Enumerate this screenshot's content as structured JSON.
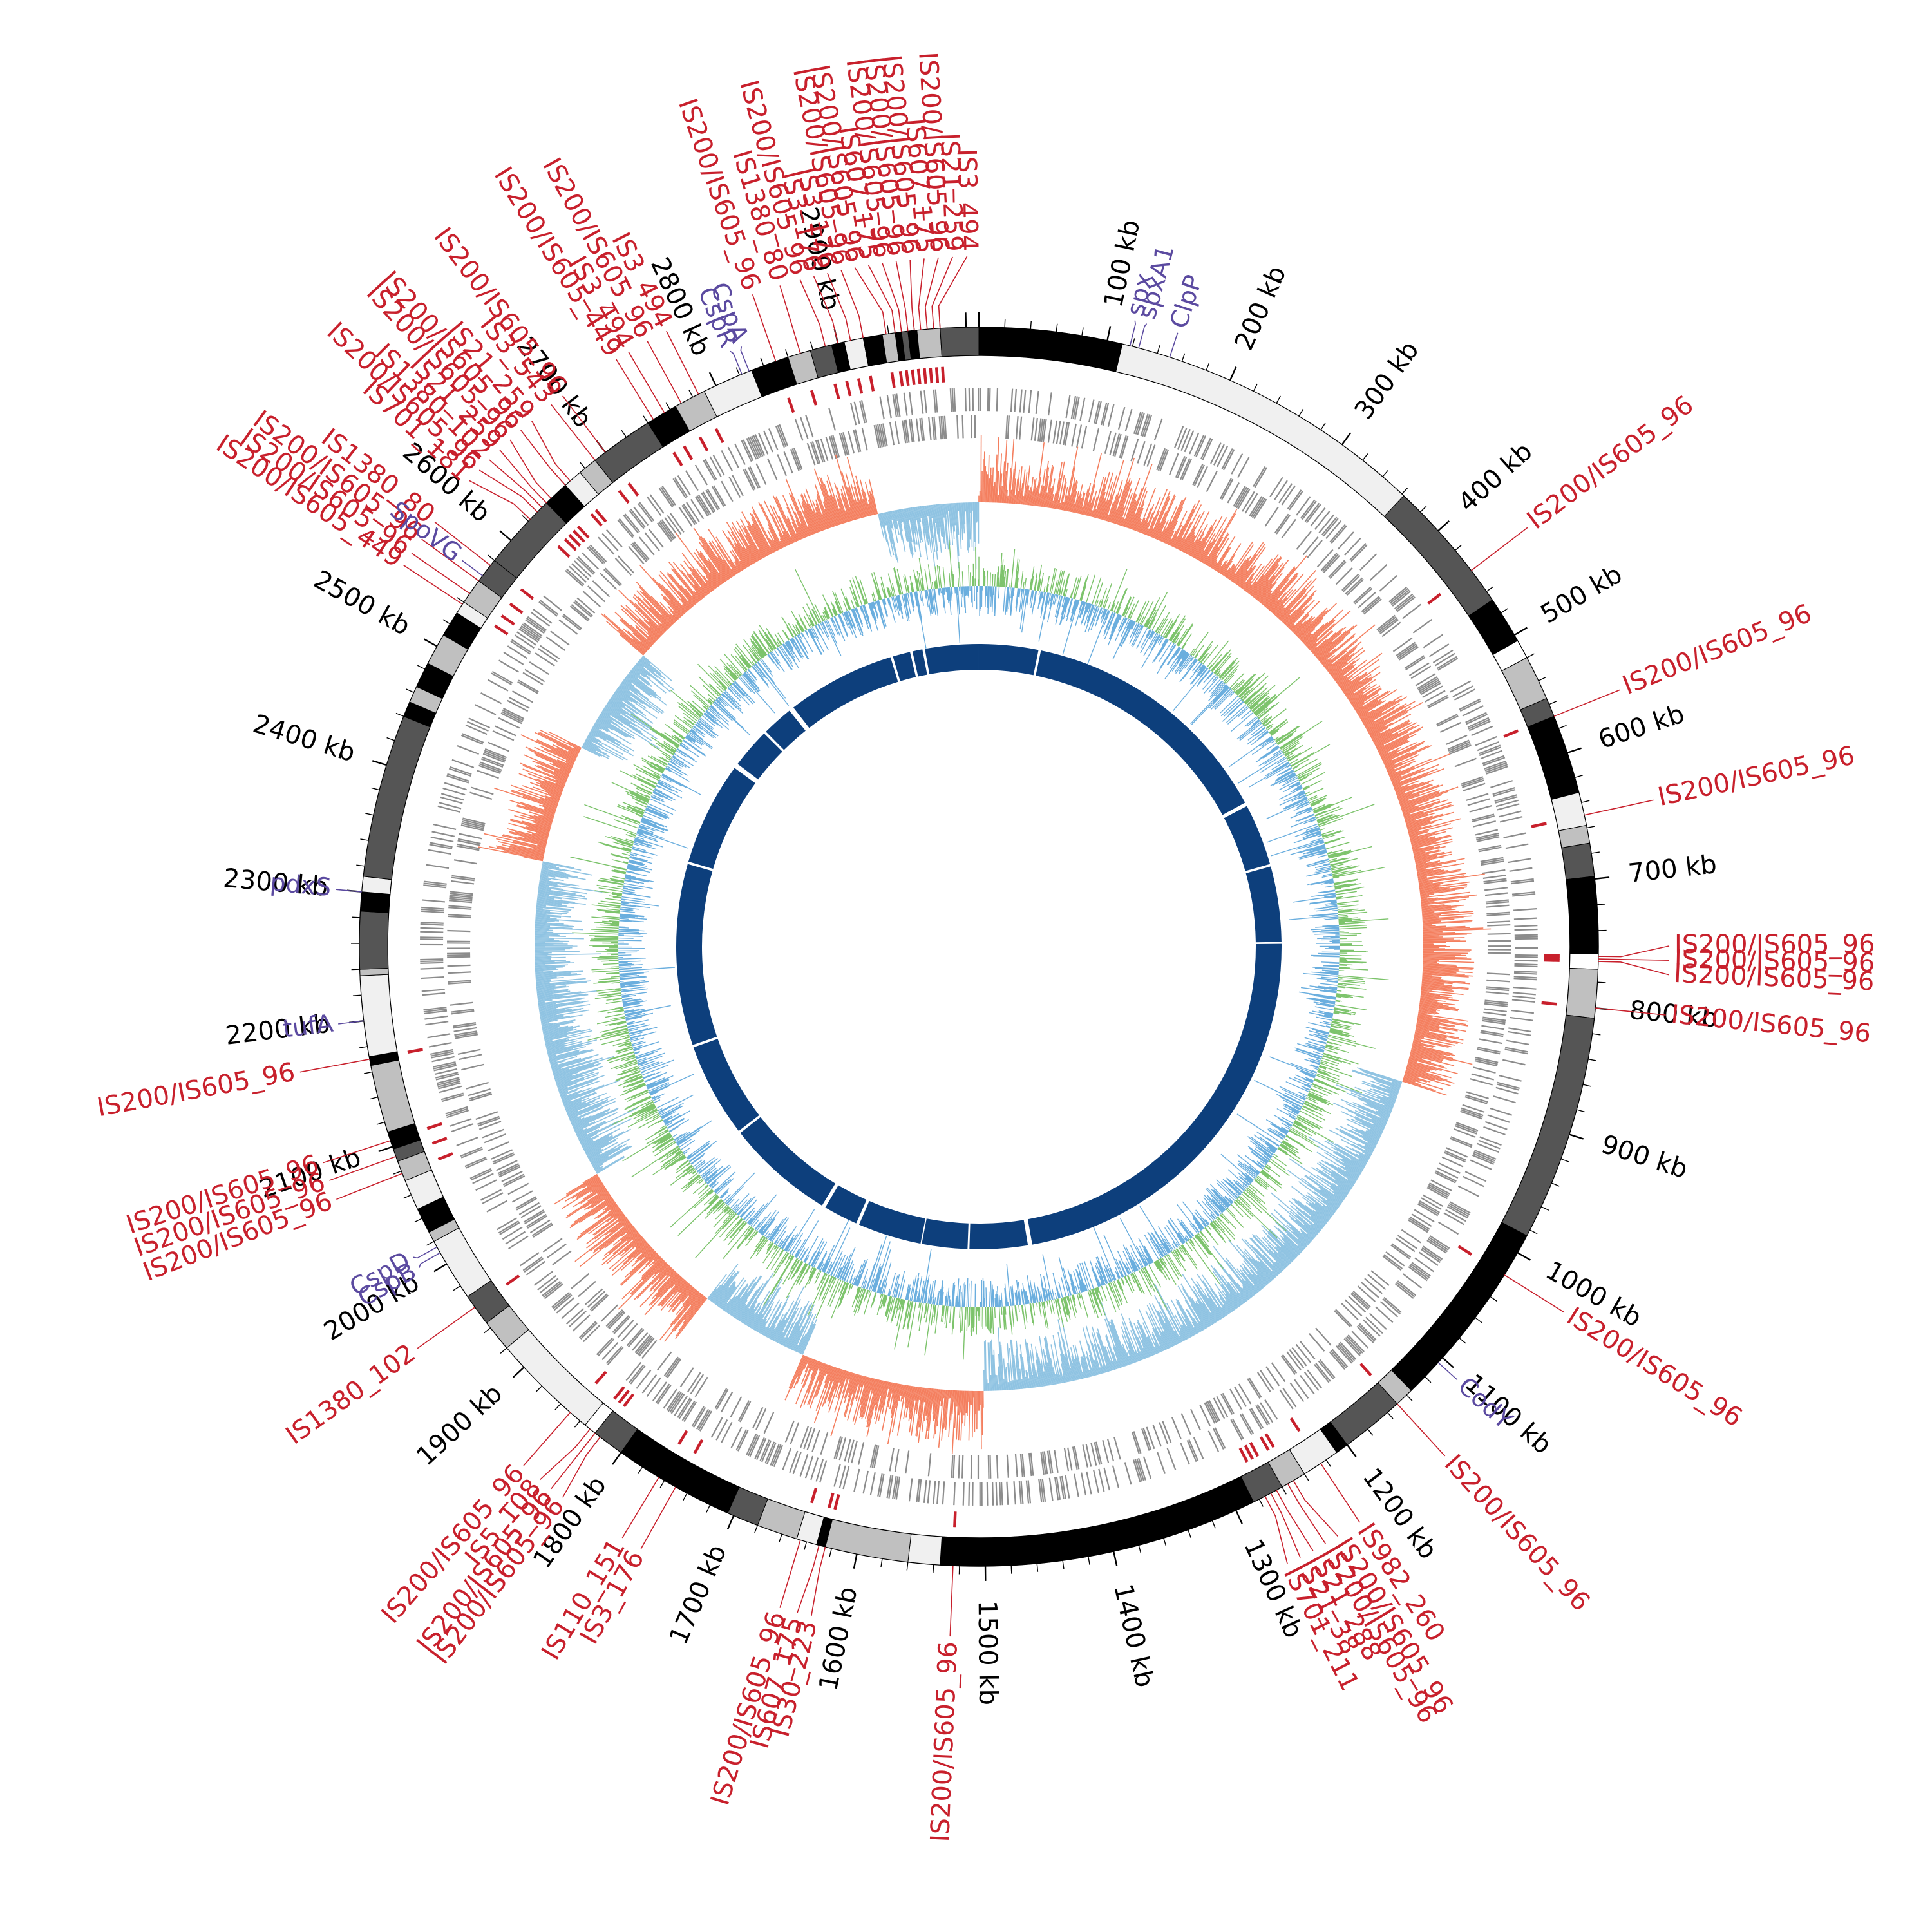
{
  "genome": {
    "length_kb": 3010
  },
  "colors": {
    "is_element": "#c8202c",
    "gene": "#5b4aa0",
    "gc_skew_positive": "#f47f5f",
    "gc_skew_negative": "#8fc3e2",
    "gc_content_high": "#7cc36b",
    "gc_content_low": "#6aaede",
    "inner_ring": "#0d3f7c",
    "cds": "#8c8c8c",
    "tick": "#000000"
  },
  "scale_labels": [
    "100 kb",
    "200 kb",
    "300 kb",
    "400 kb",
    "500 kb",
    "600 kb",
    "700 kb",
    "800 kb",
    "900 kb",
    "1000 kb",
    "1100 kb",
    "1200 kb",
    "1300 kb",
    "1400 kb",
    "1500 kb",
    "1600 kb",
    "1700 kb",
    "1800 kb",
    "1900 kb",
    "2000 kb",
    "2100 kb",
    "2200 kb",
    "2300 kb",
    "2400 kb",
    "2500 kb",
    "2600 kb",
    "2700 kb",
    "2800 kb",
    "2900 kb"
  ],
  "contig_blocks": [
    {
      "start": 0,
      "end": 112,
      "shade": "#000000"
    },
    {
      "start": 112,
      "end": 362,
      "shade": "#f0f0f0"
    },
    {
      "start": 362,
      "end": 468,
      "shade": "#555555"
    },
    {
      "start": 468,
      "end": 505,
      "shade": "#000000"
    },
    {
      "start": 505,
      "end": 520,
      "shade": "#ffffff"
    },
    {
      "start": 520,
      "end": 555,
      "shade": "#c0c0c0"
    },
    {
      "start": 555,
      "end": 570,
      "shade": "#555555"
    },
    {
      "start": 570,
      "end": 632,
      "shade": "#000000"
    },
    {
      "start": 632,
      "end": 658,
      "shade": "#f0f0f0"
    },
    {
      "start": 658,
      "end": 672,
      "shade": "#c0c0c0"
    },
    {
      "start": 672,
      "end": 698,
      "shade": "#555555"
    },
    {
      "start": 698,
      "end": 758,
      "shade": "#000000"
    },
    {
      "start": 758,
      "end": 770,
      "shade": "#ffffff"
    },
    {
      "start": 770,
      "end": 808,
      "shade": "#c0c0c0"
    },
    {
      "start": 808,
      "end": 985,
      "shade": "#555555"
    },
    {
      "start": 985,
      "end": 1135,
      "shade": "#000000"
    },
    {
      "start": 1135,
      "end": 1150,
      "shade": "#c0c0c0"
    },
    {
      "start": 1150,
      "end": 1200,
      "shade": "#555555"
    },
    {
      "start": 1200,
      "end": 1210,
      "shade": "#000000"
    },
    {
      "start": 1210,
      "end": 1240,
      "shade": "#f0f0f0"
    },
    {
      "start": 1240,
      "end": 1260,
      "shade": "#c0c0c0"
    },
    {
      "start": 1260,
      "end": 1285,
      "shade": "#555555"
    },
    {
      "start": 1285,
      "end": 1535,
      "shade": "#000000"
    },
    {
      "start": 1535,
      "end": 1560,
      "shade": "#f0f0f0"
    },
    {
      "start": 1560,
      "end": 1625,
      "shade": "#c0c0c0"
    },
    {
      "start": 1625,
      "end": 1632,
      "shade": "#000000"
    },
    {
      "start": 1632,
      "end": 1648,
      "shade": "#f0f0f0"
    },
    {
      "start": 1648,
      "end": 1680,
      "shade": "#c0c0c0"
    },
    {
      "start": 1680,
      "end": 1705,
      "shade": "#555555"
    },
    {
      "start": 1705,
      "end": 1800,
      "shade": "#000000"
    },
    {
      "start": 1800,
      "end": 1825,
      "shade": "#555555"
    },
    {
      "start": 1825,
      "end": 1835,
      "shade": "#ffffff"
    },
    {
      "start": 1835,
      "end": 1920,
      "shade": "#f0f0f0"
    },
    {
      "start": 1920,
      "end": 1945,
      "shade": "#c0c0c0"
    },
    {
      "start": 1945,
      "end": 1970,
      "shade": "#555555"
    },
    {
      "start": 1970,
      "end": 2020,
      "shade": "#f0f0f0"
    },
    {
      "start": 2020,
      "end": 2028,
      "shade": "#c0c0c0"
    },
    {
      "start": 2028,
      "end": 2048,
      "shade": "#000000"
    },
    {
      "start": 2048,
      "end": 2072,
      "shade": "#f0f0f0"
    },
    {
      "start": 2072,
      "end": 2088,
      "shade": "#c0c0c0"
    },
    {
      "start": 2088,
      "end": 2098,
      "shade": "#555555"
    },
    {
      "start": 2098,
      "end": 2112,
      "shade": "#000000"
    },
    {
      "start": 2112,
      "end": 2165,
      "shade": "#c0c0c0"
    },
    {
      "start": 2165,
      "end": 2172,
      "shade": "#000000"
    },
    {
      "start": 2172,
      "end": 2235,
      "shade": "#f0f0f0"
    },
    {
      "start": 2235,
      "end": 2240,
      "shade": "#c0c0c0"
    },
    {
      "start": 2240,
      "end": 2285,
      "shade": "#555555"
    },
    {
      "start": 2285,
      "end": 2300,
      "shade": "#000000"
    },
    {
      "start": 2300,
      "end": 2312,
      "shade": "#f0f0f0"
    },
    {
      "start": 2312,
      "end": 2440,
      "shade": "#555555"
    },
    {
      "start": 2440,
      "end": 2452,
      "shade": "#000000"
    },
    {
      "start": 2452,
      "end": 2465,
      "shade": "#c0c0c0"
    },
    {
      "start": 2465,
      "end": 2485,
      "shade": "#000000"
    },
    {
      "start": 2485,
      "end": 2510,
      "shade": "#c0c0c0"
    },
    {
      "start": 2510,
      "end": 2530,
      "shade": "#000000"
    },
    {
      "start": 2530,
      "end": 2540,
      "shade": "#f0f0f0"
    },
    {
      "start": 2540,
      "end": 2560,
      "shade": "#c0c0c0"
    },
    {
      "start": 2560,
      "end": 2580,
      "shade": "#555555"
    },
    {
      "start": 2580,
      "end": 2640,
      "shade": "#555555"
    },
    {
      "start": 2640,
      "end": 2660,
      "shade": "#000000"
    },
    {
      "start": 2660,
      "end": 2675,
      "shade": "#f0f0f0"
    },
    {
      "start": 2675,
      "end": 2690,
      "shade": "#c0c0c0"
    },
    {
      "start": 2690,
      "end": 2740,
      "shade": "#555555"
    },
    {
      "start": 2740,
      "end": 2765,
      "shade": "#000000"
    },
    {
      "start": 2765,
      "end": 2790,
      "shade": "#c0c0c0"
    },
    {
      "start": 2790,
      "end": 2830,
      "shade": "#f0f0f0"
    },
    {
      "start": 2830,
      "end": 2860,
      "shade": "#000000"
    },
    {
      "start": 2860,
      "end": 2878,
      "shade": "#c0c0c0"
    },
    {
      "start": 2878,
      "end": 2895,
      "shade": "#555555"
    },
    {
      "start": 2895,
      "end": 2905,
      "shade": "#000000"
    },
    {
      "start": 2905,
      "end": 2920,
      "shade": "#f0f0f0"
    },
    {
      "start": 2920,
      "end": 2935,
      "shade": "#000000"
    },
    {
      "start": 2935,
      "end": 2945,
      "shade": "#c0c0c0"
    },
    {
      "start": 2945,
      "end": 2950,
      "shade": "#000000"
    },
    {
      "start": 2950,
      "end": 2955,
      "shade": "#555555"
    },
    {
      "start": 2955,
      "end": 2962,
      "shade": "#000000"
    },
    {
      "start": 2962,
      "end": 2980,
      "shade": "#c0c0c0"
    },
    {
      "start": 2980,
      "end": 3010,
      "shade": "#555555"
    }
  ],
  "inner_ring_gaps": [
    {
      "start": 95,
      "end": 99
    },
    {
      "start": 515,
      "end": 521
    },
    {
      "start": 620,
      "end": 624
    },
    {
      "start": 745,
      "end": 748
    },
    {
      "start": 1420,
      "end": 1427
    },
    {
      "start": 1520,
      "end": 1523
    },
    {
      "start": 1596,
      "end": 1598
    },
    {
      "start": 1700,
      "end": 1705
    },
    {
      "start": 1760,
      "end": 1766
    },
    {
      "start": 1940,
      "end": 1944
    },
    {
      "start": 2095,
      "end": 2099
    },
    {
      "start": 2390,
      "end": 2394
    },
    {
      "start": 2560,
      "end": 2568
    },
    {
      "start": 2632,
      "end": 2636
    },
    {
      "start": 2686,
      "end": 2694
    },
    {
      "start": 2868,
      "end": 2872
    },
    {
      "start": 2900,
      "end": 2904
    },
    {
      "start": 2920,
      "end": 2924
    }
  ],
  "is_labels": [
    {
      "text": "IS200/IS605_96",
      "pos": 2920
    },
    {
      "text": "IS200/IS605_96",
      "pos": 2938
    },
    {
      "text": "IS607_175",
      "pos": 2945
    },
    {
      "text": "IS200/IS605_96",
      "pos": 2950
    },
    {
      "text": "IS200/IS605_96",
      "pos": 2955
    },
    {
      "text": "IS200/IS605_96",
      "pos": 2960
    },
    {
      "text": "IS607_175",
      "pos": 2965
    },
    {
      "text": "IS200/IS605_96",
      "pos": 2970
    },
    {
      "text": "IS21_259",
      "pos": 2975
    },
    {
      "text": "IS3_494",
      "pos": 2980
    },
    {
      "text": "IS3_176",
      "pos": 2910
    },
    {
      "text": "IS3_176",
      "pos": 2900
    },
    {
      "text": "IS200/IS605_96",
      "pos": 2890
    },
    {
      "text": "IS1380_80",
      "pos": 2870
    },
    {
      "text": "IS200/IS605_96",
      "pos": 2850
    },
    {
      "text": "IS3_494",
      "pos": 2785
    },
    {
      "text": "IS200/IS605_96",
      "pos": 2770
    },
    {
      "text": "IS3_494",
      "pos": 2755
    },
    {
      "text": "IS200/IS605_449",
      "pos": 2745
    },
    {
      "text": "IS200/IS605_96",
      "pos": 2700
    },
    {
      "text": "IS3_543",
      "pos": 2690
    },
    {
      "text": "IS21_259",
      "pos": 2665
    },
    {
      "text": "IS200/IS605_96",
      "pos": 2660
    },
    {
      "text": "IS200/IS605_96",
      "pos": 2645
    },
    {
      "text": "IS21_259",
      "pos": 2640
    },
    {
      "text": "IS1380_102",
      "pos": 2635
    },
    {
      "text": "IS200/IS605_96",
      "pos": 2630
    },
    {
      "text": "IS701_181",
      "pos": 2622
    },
    {
      "text": "IS1380_80",
      "pos": 2575
    },
    {
      "text": "IS200/IS605_96",
      "pos": 2560
    },
    {
      "text": "IS200/IS605_96",
      "pos": 2548
    },
    {
      "text": "IS200/IS605_449",
      "pos": 2538
    },
    {
      "text": "IS200/IS605_96",
      "pos": 440
    },
    {
      "text": "IS200/IS605_96",
      "pos": 570
    },
    {
      "text": "IS200/IS605_96",
      "pos": 650
    },
    {
      "text": "IS200/IS605_96",
      "pos": 760
    },
    {
      "text": "IS200/IS605_96",
      "pos": 762
    },
    {
      "text": "IS200/IS605_96",
      "pos": 764
    },
    {
      "text": "IS200/IS605_96",
      "pos": 800
    },
    {
      "text": "IS200/IS605_96",
      "pos": 1020
    },
    {
      "text": "IS200/IS605_96",
      "pos": 1150
    },
    {
      "text": "IS982_260",
      "pos": 1225
    },
    {
      "text": "IS200/IS605_96",
      "pos": 1250
    },
    {
      "text": "IS200/IS605_96",
      "pos": 1255
    },
    {
      "text": "IS21_288",
      "pos": 1265
    },
    {
      "text": "IS21_38",
      "pos": 1270
    },
    {
      "text": "IS701_211",
      "pos": 1275
    },
    {
      "text": "IS200/IS605_96",
      "pos": 1525
    },
    {
      "text": "IS30_223",
      "pos": 1625
    },
    {
      "text": "IS607_175",
      "pos": 1630
    },
    {
      "text": "IS200/IS605_96",
      "pos": 1645
    },
    {
      "text": "IS3_176",
      "pos": 1750
    },
    {
      "text": "IS110_151",
      "pos": 1765
    },
    {
      "text": "IS200/IS605_96",
      "pos": 1820
    },
    {
      "text": "IS200/IS605_96",
      "pos": 1825
    },
    {
      "text": "IS5_108",
      "pos": 1830
    },
    {
      "text": "IS200/IS605_96",
      "pos": 1850
    },
    {
      "text": "IS1380_102",
      "pos": 1960
    },
    {
      "text": "IS200/IS605_96",
      "pos": 2078
    },
    {
      "text": "IS200/IS605_96",
      "pos": 2092
    },
    {
      "text": "IS200/IS605_96",
      "pos": 2105
    },
    {
      "text": "IS200/IS605_96",
      "pos": 2170
    }
  ],
  "gene_labels": [
    {
      "text": "ClpP",
      "pos": 150
    },
    {
      "text": "spxA1",
      "pos": 125
    },
    {
      "text": "spx",
      "pos": 118
    },
    {
      "text": "CspA",
      "pos": 2828
    },
    {
      "text": "CspR",
      "pos": 2822
    },
    {
      "text": "SpoVG",
      "pos": 2565
    },
    {
      "text": "pdxS",
      "pos": 2300
    },
    {
      "text": "tufA",
      "pos": 2200
    },
    {
      "text": "CspD",
      "pos": 2015
    },
    {
      "text": "CspB",
      "pos": 2010
    },
    {
      "text": "CodY",
      "pos": 1105
    }
  ],
  "gc_skew_profile": [
    {
      "from": 0,
      "to": 340,
      "sign": 1
    },
    {
      "from": 340,
      "to": 900,
      "sign": 1
    },
    {
      "from": 900,
      "to": 1120,
      "sign": -1
    },
    {
      "from": 1120,
      "to": 1500,
      "sign": -1
    },
    {
      "from": 1500,
      "to": 1700,
      "sign": 1
    },
    {
      "from": 1700,
      "to": 1820,
      "sign": -1
    },
    {
      "from": 1820,
      "to": 2000,
      "sign": 1
    },
    {
      "from": 2000,
      "to": 2350,
      "sign": -1
    },
    {
      "from": 2350,
      "to": 2480,
      "sign": 1
    },
    {
      "from": 2480,
      "to": 2600,
      "sign": -1
    },
    {
      "from": 2600,
      "to": 2900,
      "sign": 1
    },
    {
      "from": 2900,
      "to": 3010,
      "sign": -1
    }
  ]
}
